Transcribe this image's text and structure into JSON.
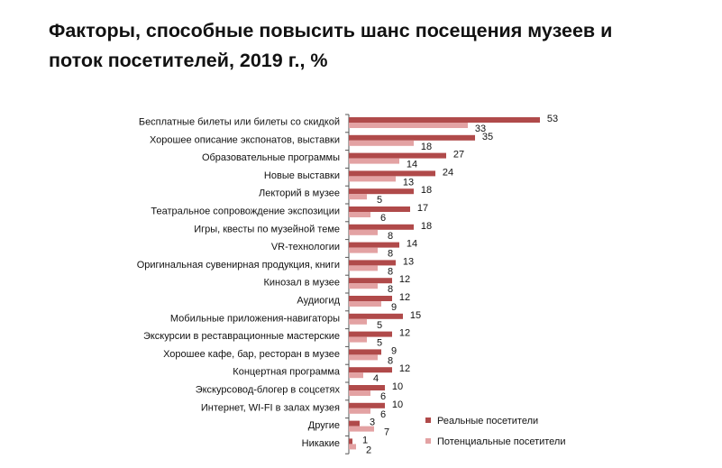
{
  "page": {
    "title_line1": "Факторы, способные повысить шанс посещения музеев и",
    "title_line2": "поток посетителей, 2019 г., %"
  },
  "chart_data": {
    "type": "bar",
    "orientation": "horizontal",
    "title": "Факторы, способные повысить шанс посещения музеев и поток посетителей, 2019 г., %",
    "xlabel": "",
    "ylabel": "",
    "xlim": [
      0,
      55
    ],
    "grid": false,
    "legend_position": "bottom-right",
    "categories": [
      "Бесплатные билеты или билеты со скидкой",
      "Хорошее  описание экспонатов, выставки",
      "Образовательные программы",
      "Новые выставки",
      "Лекторий  в музее",
      "Театральное сопровождение экспозиции",
      "Игры, квесты по музейной теме",
      "VR-технологии",
      "Оригинальная сувенирная продукция,  книги",
      "Кинозал в музее",
      "Аудиогид",
      "Мобильные приложения-навигаторы",
      "Экскурсии в реставрационные мастерские",
      "Хорошее  кафе, бар, ресторан в музее",
      "Концертная программа",
      "Экскурсовод-блогер в соцсетях",
      "Интернет,  WI-FI в залах музея",
      "Другие",
      "Никакие"
    ],
    "series": [
      {
        "name": "Реальные посетители",
        "color": "#b04a4a",
        "values": [
          53,
          35,
          27,
          24,
          18,
          17,
          18,
          14,
          13,
          12,
          12,
          15,
          12,
          9,
          12,
          10,
          10,
          3,
          1
        ]
      },
      {
        "name": "Потенциальные  посетители",
        "color": "#e3a2a3",
        "values": [
          33,
          18,
          14,
          13,
          5,
          6,
          8,
          8,
          8,
          8,
          9,
          5,
          5,
          8,
          4,
          6,
          6,
          7,
          2
        ]
      }
    ]
  }
}
